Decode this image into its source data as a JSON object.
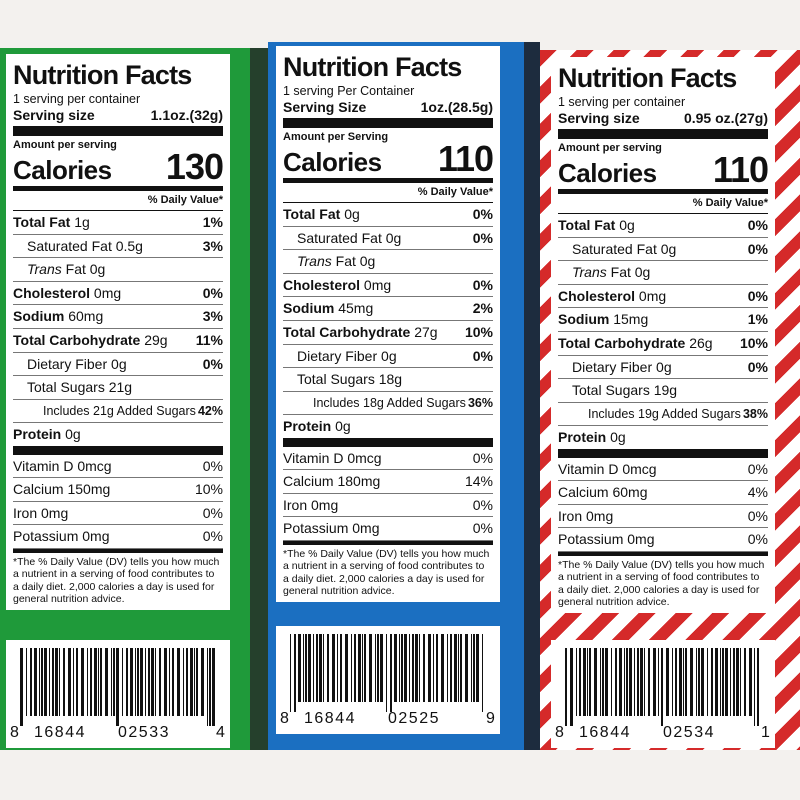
{
  "labels": [
    {
      "title": "Nutrition Facts",
      "servings": "1 serving per container",
      "serving_size_label": "Serving size",
      "serving_size": "1.1oz.(32g)",
      "amount_per_serving": "Amount per serving",
      "calories_label": "Calories",
      "calories": "130",
      "daily_value_header": "% Daily Value*",
      "nutrients": [
        [
          "Total Fat",
          "1g",
          "1%"
        ],
        [
          "Saturated Fat",
          "0.5g",
          "3%"
        ],
        [
          "Trans",
          "Fat 0g",
          ""
        ],
        [
          "Cholesterol",
          "0mg",
          "0%"
        ],
        [
          "Sodium",
          "60mg",
          "3%"
        ],
        [
          "Total Carbohydrate",
          "29g",
          "11%"
        ],
        [
          "Dietary Fiber",
          "0g",
          "0%"
        ],
        [
          "Total Sugars",
          "21g",
          ""
        ],
        [
          "Includes 21g Added Sugars",
          "",
          "42%"
        ],
        [
          "Protein",
          "0g",
          ""
        ]
      ],
      "vitamins": [
        [
          "Vitamin D 0mcg",
          "0%"
        ],
        [
          "Calcium 150mg",
          "10%"
        ],
        [
          "Iron 0mg",
          "0%"
        ],
        [
          "Potassium 0mg",
          "0%"
        ]
      ],
      "footnote": "*The % Daily Value (DV) tells you how much a nutrient in a serving of food contributes to a daily diet. 2,000 calories a day is used for general nutrition advice.",
      "barcode": [
        "8",
        "16844",
        "02533",
        "4"
      ]
    },
    {
      "title": "Nutrition Facts",
      "servings": "1 serving Per Container",
      "serving_size_label": "Serving Size",
      "serving_size": "1oz.(28.5g)",
      "amount_per_serving": "Amount per Serving",
      "calories_label": "Calories",
      "calories": "110",
      "daily_value_header": "% Daily Value*",
      "nutrients": [
        [
          "Total Fat",
          "0g",
          "0%"
        ],
        [
          "Saturated Fat",
          "0g",
          "0%"
        ],
        [
          "Trans",
          "Fat 0g",
          ""
        ],
        [
          "Cholesterol",
          "0mg",
          "0%"
        ],
        [
          "Sodium",
          "45mg",
          "2%"
        ],
        [
          "Total Carbohydrate",
          "27g",
          "10%"
        ],
        [
          "Dietary Fiber",
          "0g",
          "0%"
        ],
        [
          "Total Sugars",
          "18g",
          ""
        ],
        [
          "Includes 18g Added Sugars",
          "",
          "36%"
        ],
        [
          "Protein",
          "0g",
          ""
        ]
      ],
      "vitamins": [
        [
          "Vitamin D 0mcg",
          "0%"
        ],
        [
          "Calcium 180mg",
          "14%"
        ],
        [
          "Iron 0mg",
          "0%"
        ],
        [
          "Potassium 0mg",
          "0%"
        ]
      ],
      "footnote": "*The % Daily Value (DV) tells you how much a nutrient in a serving of food contributes to a daily diet. 2,000 calories a day is used for general nutrition advice.",
      "barcode": [
        "8",
        "16844",
        "02525",
        "9"
      ]
    },
    {
      "title": "Nutrition Facts",
      "servings": "1 serving per container",
      "serving_size_label": "Serving size",
      "serving_size": "0.95 oz.(27g)",
      "amount_per_serving": "Amount per serving",
      "calories_label": "Calories",
      "calories": "110",
      "daily_value_header": "% Daily Value*",
      "nutrients": [
        [
          "Total Fat",
          "0g",
          "0%"
        ],
        [
          "Saturated Fat",
          "0g",
          "0%"
        ],
        [
          "Trans",
          "Fat 0g",
          ""
        ],
        [
          "Cholesterol",
          "0mg",
          "0%"
        ],
        [
          "Sodium",
          "15mg",
          "1%"
        ],
        [
          "Total Carbohydrate",
          "26g",
          "10%"
        ],
        [
          "Dietary Fiber",
          "0g",
          "0%"
        ],
        [
          "Total Sugars",
          "19g",
          ""
        ],
        [
          "Includes 19g Added Sugars",
          "",
          "38%"
        ],
        [
          "Protein",
          "0g",
          ""
        ]
      ],
      "vitamins": [
        [
          "Vitamin D 0mcg",
          "0%"
        ],
        [
          "Calcium 60mg",
          "4%"
        ],
        [
          "Iron 0mg",
          "0%"
        ],
        [
          "Potassium 0mg",
          "0%"
        ]
      ],
      "footnote": "*The % Daily Value (DV) tells you how much a nutrient in a serving of food contributes to a daily diet. 2,000 calories a day is used for general nutrition advice.",
      "barcode": [
        "8",
        "16844",
        "02534",
        "1"
      ]
    }
  ]
}
